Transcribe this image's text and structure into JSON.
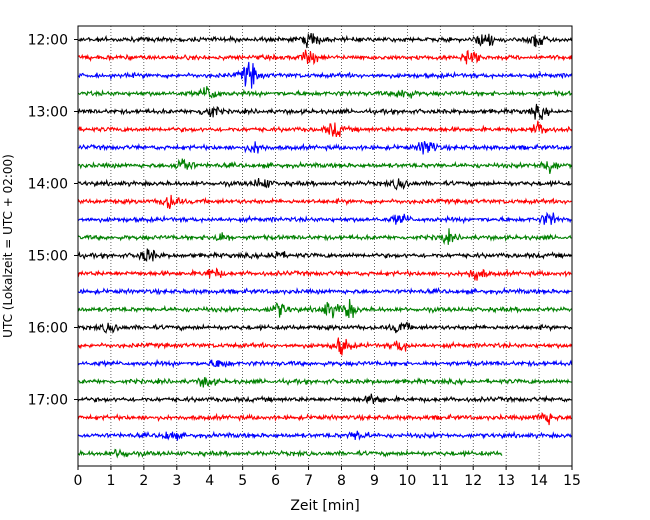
{
  "chart_data": {
    "type": "line",
    "title": "",
    "xlabel": "Zeit  [min]",
    "ylabel": "UTC (Lokalzeit = UTC + 02:00)",
    "xlim": [
      0,
      15
    ],
    "x_ticks": [
      "0",
      "1",
      "2",
      "3",
      "4",
      "5",
      "6",
      "7",
      "8",
      "9",
      "10",
      "11",
      "12",
      "13",
      "14",
      "15"
    ],
    "y_ticks": [
      {
        "label": "12:00",
        "row": 0
      },
      {
        "label": "13:00",
        "row": 4
      },
      {
        "label": "14:00",
        "row": 8
      },
      {
        "label": "15:00",
        "row": 12
      },
      {
        "label": "16:00",
        "row": 16
      },
      {
        "label": "17:00",
        "row": 20
      }
    ],
    "grid": "vertical-dotted",
    "row_colors": [
      "#000000",
      "#ff0000",
      "#0000ff",
      "#008000"
    ],
    "rows": [
      {
        "start": "12:00",
        "color": "#000000",
        "end_min": 15,
        "events": [
          [
            7.1,
            2.0
          ],
          [
            12.4,
            2.2
          ],
          [
            14.0,
            2.6
          ]
        ]
      },
      {
        "start": "12:15",
        "color": "#ff0000",
        "end_min": 15,
        "events": [
          [
            7.0,
            2.0
          ],
          [
            11.9,
            2.2
          ]
        ]
      },
      {
        "start": "12:30",
        "color": "#0000ff",
        "end_min": 15,
        "events": [
          [
            5.2,
            3.2
          ]
        ]
      },
      {
        "start": "12:45",
        "color": "#008000",
        "end_min": 15,
        "events": [
          [
            4.0,
            2.0
          ],
          [
            9.9,
            1.6
          ]
        ]
      },
      {
        "start": "13:00",
        "color": "#000000",
        "end_min": 15,
        "events": [
          [
            4.0,
            1.8
          ],
          [
            14.0,
            1.4
          ]
        ]
      },
      {
        "start": "13:15",
        "color": "#ff0000",
        "end_min": 15,
        "events": [
          [
            7.8,
            1.8
          ],
          [
            14.0,
            1.6
          ]
        ]
      },
      {
        "start": "13:30",
        "color": "#0000ff",
        "end_min": 15,
        "events": [
          [
            5.4,
            1.4
          ],
          [
            10.6,
            2.2
          ]
        ]
      },
      {
        "start": "13:45",
        "color": "#008000",
        "end_min": 15,
        "events": [
          [
            3.2,
            2.0
          ],
          [
            14.3,
            2.0
          ]
        ]
      },
      {
        "start": "14:00",
        "color": "#000000",
        "end_min": 15,
        "events": [
          [
            5.6,
            1.4
          ],
          [
            9.8,
            1.3
          ]
        ]
      },
      {
        "start": "14:15",
        "color": "#ff0000",
        "end_min": 15,
        "events": [
          [
            2.8,
            2.0
          ]
        ]
      },
      {
        "start": "14:30",
        "color": "#0000ff",
        "end_min": 15,
        "events": [
          [
            14.3,
            1.6
          ],
          [
            9.8,
            1.3
          ]
        ]
      },
      {
        "start": "14:45",
        "color": "#008000",
        "end_min": 15,
        "events": [
          [
            4.3,
            1.2
          ],
          [
            11.2,
            1.2
          ]
        ]
      },
      {
        "start": "15:00",
        "color": "#000000",
        "end_min": 15,
        "events": [
          [
            2.1,
            1.8
          ],
          [
            6.0,
            1.2
          ]
        ]
      },
      {
        "start": "15:15",
        "color": "#ff0000",
        "end_min": 15,
        "events": [
          [
            4.1,
            1.3
          ],
          [
            12.1,
            1.8
          ]
        ]
      },
      {
        "start": "15:30",
        "color": "#0000ff",
        "end_min": 15,
        "events": []
      },
      {
        "start": "15:45",
        "color": "#008000",
        "end_min": 15,
        "events": [
          [
            6.1,
            1.8
          ],
          [
            8.2,
            2.2
          ],
          [
            7.6,
            1.8
          ]
        ]
      },
      {
        "start": "16:00",
        "color": "#000000",
        "end_min": 15,
        "events": [
          [
            1.0,
            1.2
          ],
          [
            9.8,
            1.4
          ]
        ]
      },
      {
        "start": "16:15",
        "color": "#ff0000",
        "end_min": 15,
        "events": [
          [
            8.0,
            2.2
          ],
          [
            9.8,
            1.4
          ]
        ]
      },
      {
        "start": "16:30",
        "color": "#0000ff",
        "end_min": 15,
        "events": [
          [
            4.3,
            1.2
          ]
        ]
      },
      {
        "start": "16:45",
        "color": "#008000",
        "end_min": 15,
        "events": [
          [
            3.9,
            1.2
          ]
        ]
      },
      {
        "start": "17:00",
        "color": "#000000",
        "end_min": 15,
        "events": [
          [
            9.0,
            1.2
          ]
        ]
      },
      {
        "start": "17:15",
        "color": "#ff0000",
        "end_min": 15,
        "events": [
          [
            14.2,
            1.8
          ]
        ]
      },
      {
        "start": "17:30",
        "color": "#0000ff",
        "end_min": 15,
        "events": [
          [
            8.5,
            1.3
          ],
          [
            2.8,
            1.1
          ]
        ]
      },
      {
        "start": "17:45",
        "color": "#008000",
        "end_min": 12.9,
        "events": [
          [
            1.3,
            1.1
          ]
        ]
      }
    ]
  }
}
